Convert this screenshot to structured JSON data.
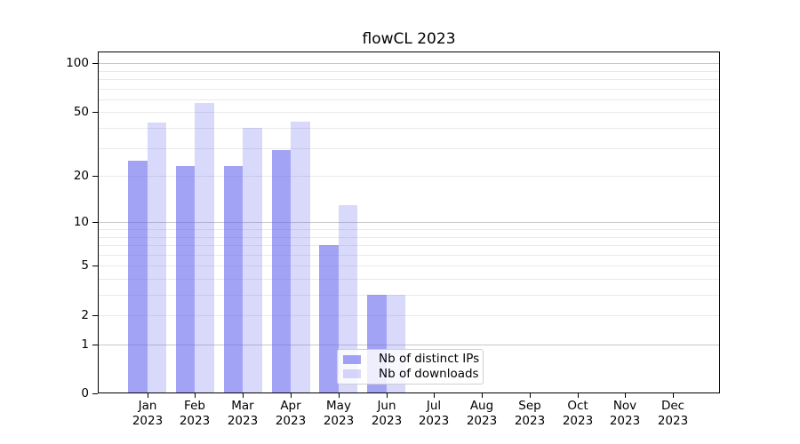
{
  "chart": {
    "title": "flowCL 2023",
    "year": "2023",
    "months": [
      "Jan",
      "Feb",
      "Mar",
      "Apr",
      "May",
      "Jun",
      "Jul",
      "Aug",
      "Sep",
      "Oct",
      "Nov",
      "Dec"
    ],
    "y_tick_labels": [
      "100",
      "50",
      "20",
      "10",
      "5",
      "2",
      "1",
      "0"
    ],
    "legend": {
      "items": [
        {
          "label": "Nb of distinct IPs",
          "color": "rgba(102,102,238,0.60)"
        },
        {
          "label": "Nb of downloads",
          "color": "rgba(102,102,238,0.25)"
        }
      ]
    },
    "colors": {
      "bar_base": "#6666ee",
      "grid_major": "#c8c8c8",
      "grid_minor": "#eaeaea",
      "axis": "#000000",
      "background": "#ffffff"
    }
  },
  "chart_data": {
    "type": "bar",
    "title": "flowCL 2023",
    "categories": [
      "Jan 2023",
      "Feb 2023",
      "Mar 2023",
      "Apr 2023",
      "May 2023",
      "Jun 2023",
      "Jul 2023",
      "Aug 2023",
      "Sep 2023",
      "Oct 2023",
      "Nov 2023",
      "Dec 2023"
    ],
    "series": [
      {
        "name": "Nb of distinct IPs",
        "values": [
          25,
          23,
          23,
          29,
          7,
          3,
          0,
          0,
          0,
          0,
          0,
          0
        ]
      },
      {
        "name": "Nb of downloads",
        "values": [
          43,
          57,
          40,
          44,
          13,
          3,
          0,
          0,
          0,
          0,
          0,
          0
        ]
      }
    ],
    "xlabel": "",
    "ylabel": "",
    "yscale": "log10(1+x)",
    "yticks": [
      0,
      1,
      2,
      5,
      10,
      20,
      50,
      100
    ],
    "ylim": [
      0,
      118
    ],
    "grid": "horizontal",
    "grid_major_at": [
      1,
      10,
      100
    ],
    "grid_minor_at": [
      2,
      3,
      4,
      5,
      6,
      7,
      8,
      9,
      20,
      30,
      40,
      50,
      60,
      70,
      80,
      90
    ],
    "legend_position": "lower center inside"
  }
}
